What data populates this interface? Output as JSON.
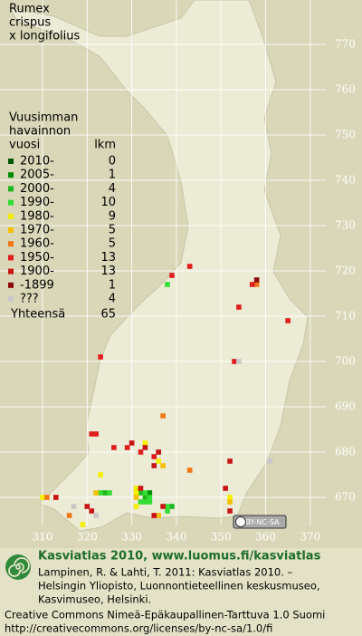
{
  "title": [
    "Rumex",
    "crispus",
    "x longifolius"
  ],
  "legend": {
    "heading": [
      "Vuusimman",
      "havainnon",
      "vuosi"
    ],
    "count_heading": "lkm",
    "entries": [
      {
        "label": "2010-",
        "count": 0,
        "color": "#005a00",
        "squares": []
      },
      {
        "label": "2005-",
        "count": 1,
        "color": "#008c00",
        "squares": [
          [
            334,
            671
          ]
        ]
      },
      {
        "label": "2000-",
        "count": 4,
        "color": "#1db41d",
        "squares": [
          [
            332,
            671
          ],
          [
            333,
            670
          ],
          [
            324,
            671
          ],
          [
            339,
            668
          ]
        ]
      },
      {
        "label": "1990-",
        "count": 10,
        "color": "#33dd33",
        "squares": [
          [
            338,
            717
          ],
          [
            325,
            671
          ],
          [
            333,
            671
          ],
          [
            334,
            670
          ],
          [
            332,
            669
          ],
          [
            333,
            669
          ],
          [
            334,
            669
          ],
          [
            338,
            668
          ],
          [
            338,
            667
          ],
          [
            323,
            671
          ]
        ]
      },
      {
        "label": "1980-",
        "count": 9,
        "color": "#f5f000",
        "squares": [
          [
            333,
            682
          ],
          [
            336,
            678
          ],
          [
            323,
            675
          ],
          [
            331,
            672
          ],
          [
            331,
            671
          ],
          [
            331,
            668
          ],
          [
            310,
            670
          ],
          [
            319,
            664
          ],
          [
            352,
            670
          ]
        ]
      },
      {
        "label": "1970-",
        "count": 5,
        "color": "#f5c000",
        "squares": [
          [
            337,
            677
          ],
          [
            336,
            666
          ],
          [
            322,
            671
          ],
          [
            352,
            669
          ],
          [
            331,
            670
          ]
        ]
      },
      {
        "label": "1960-",
        "count": 5,
        "color": "#f07814",
        "squares": [
          [
            337,
            688
          ],
          [
            343,
            676
          ],
          [
            358,
            717
          ],
          [
            311,
            670
          ],
          [
            316,
            666
          ]
        ]
      },
      {
        "label": "1950-",
        "count": 13,
        "color": "#e01e1e",
        "squares": [
          [
            343,
            721
          ],
          [
            339,
            719
          ],
          [
            357,
            717
          ],
          [
            354,
            712
          ],
          [
            365,
            709
          ],
          [
            353,
            700
          ],
          [
            323,
            701
          ],
          [
            321,
            684
          ],
          [
            322,
            684
          ],
          [
            326,
            681
          ],
          [
            329,
            681
          ],
          [
            332,
            680
          ],
          [
            335,
            679
          ]
        ]
      },
      {
        "label": "1900-",
        "count": 13,
        "color": "#c81414",
        "squares": [
          [
            330,
            682
          ],
          [
            333,
            681
          ],
          [
            335,
            677
          ],
          [
            352,
            678
          ],
          [
            332,
            672
          ],
          [
            313,
            670
          ],
          [
            320,
            668
          ],
          [
            321,
            667
          ],
          [
            335,
            666
          ],
          [
            337,
            668
          ],
          [
            351,
            672
          ],
          [
            352,
            667
          ],
          [
            336,
            680
          ]
        ]
      },
      {
        "label": "-1899",
        "count": 1,
        "color": "#8c0a0a",
        "squares": [
          [
            358,
            718
          ]
        ]
      },
      {
        "label": "???",
        "count": 4,
        "color": "#c8c8c8",
        "squares": [
          [
            354,
            700
          ],
          [
            361,
            678
          ],
          [
            317,
            668
          ],
          [
            322,
            666
          ]
        ]
      }
    ],
    "total_label": "Yhteensä",
    "total": 65
  },
  "xticks": [
    310,
    320,
    330,
    340,
    350,
    360,
    370
  ],
  "yticks": [
    670,
    680,
    690,
    700,
    710,
    720,
    730,
    740,
    750,
    760,
    770
  ],
  "license_badge": "BY-NC-SA",
  "footer": {
    "brand": "Kasviatlas 2010, www.luomus.fi/kasviatlas",
    "citation": [
      "Lampinen, R. & Lahti, T. 2011: Kasviatlas 2010. –",
      "Helsingin Yliopisto, Luonnontieteellinen keskusmuseo,",
      "Kasvimuseo, Helsinki."
    ],
    "license": [
      "Creative Commons Nimeä-Epäkaupallinen-Tarttuva 1.0 Suomi",
      "http://creativecommons.org/licenses/by-nc-sa/1.0/fi"
    ]
  }
}
